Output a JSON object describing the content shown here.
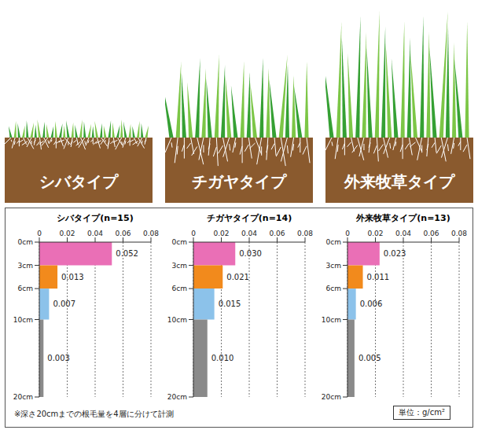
{
  "illustrations": [
    {
      "label": "シバタイプ"
    },
    {
      "label": "チガヤタイプ"
    },
    {
      "label": "外来牧草タイプ"
    }
  ],
  "chart_data": [
    {
      "type": "bar",
      "title": "シバタイプ(n=15)",
      "orientation": "horizontal",
      "bins": [
        0,
        3,
        6,
        10,
        20
      ],
      "values": [
        0.052,
        0.013,
        0.007,
        0.003
      ],
      "value_labels": [
        "0.052",
        "0.013",
        "0.007",
        "0.003"
      ],
      "colors": [
        "#ea6fb6",
        "#f28a1c",
        "#8cc2ea",
        "#8a8a8a"
      ],
      "xlim": [
        0,
        0.08
      ],
      "xticks": [
        0,
        0.02,
        0.04,
        0.06,
        0.08
      ],
      "ylim": [
        0,
        20
      ],
      "yticks": [
        {
          "value": 0,
          "label": "0cm"
        },
        {
          "value": 3,
          "label": "3cm"
        },
        {
          "value": 6,
          "label": "6cm"
        },
        {
          "value": 10,
          "label": "10cm"
        },
        {
          "value": 20,
          "label": "20cm"
        }
      ],
      "grid": true,
      "data_labels": true
    },
    {
      "type": "bar",
      "title": "チガヤタイプ(n=14)",
      "orientation": "horizontal",
      "bins": [
        0,
        3,
        6,
        10,
        20
      ],
      "values": [
        0.03,
        0.021,
        0.015,
        0.01
      ],
      "value_labels": [
        "0.030",
        "0.021",
        "0.015",
        "0.010"
      ],
      "colors": [
        "#ea6fb6",
        "#f28a1c",
        "#8cc2ea",
        "#8a8a8a"
      ],
      "xlim": [
        0,
        0.08
      ],
      "xticks": [
        0,
        0.02,
        0.04,
        0.06,
        0.08
      ],
      "ylim": [
        0,
        20
      ],
      "yticks": [
        {
          "value": 0,
          "label": "0cm"
        },
        {
          "value": 3,
          "label": "3cm"
        },
        {
          "value": 6,
          "label": "6cm"
        },
        {
          "value": 10,
          "label": "10cm"
        },
        {
          "value": 20,
          "label": "20cm"
        }
      ],
      "grid": true,
      "data_labels": true
    },
    {
      "type": "bar",
      "title": "外来牧草タイプ(n=13)",
      "orientation": "horizontal",
      "bins": [
        0,
        3,
        6,
        10,
        20
      ],
      "values": [
        0.023,
        0.011,
        0.006,
        0.005
      ],
      "value_labels": [
        "0.023",
        "0.011",
        "0.006",
        "0.005"
      ],
      "colors": [
        "#ea6fb6",
        "#f28a1c",
        "#8cc2ea",
        "#8a8a8a"
      ],
      "xlim": [
        0,
        0.08
      ],
      "xticks": [
        0,
        0.02,
        0.04,
        0.06,
        0.08
      ],
      "ylim": [
        0,
        20
      ],
      "yticks": [
        {
          "value": 0,
          "label": "0cm"
        },
        {
          "value": 3,
          "label": "3cm"
        },
        {
          "value": 6,
          "label": "6cm"
        },
        {
          "value": 10,
          "label": "10cm"
        },
        {
          "value": 20,
          "label": "20cm"
        }
      ],
      "grid": true,
      "data_labels": true
    }
  ],
  "note": "※深さ20cmまでの根毛量を4層に分けて計測",
  "unit": "単位：g/cm²"
}
